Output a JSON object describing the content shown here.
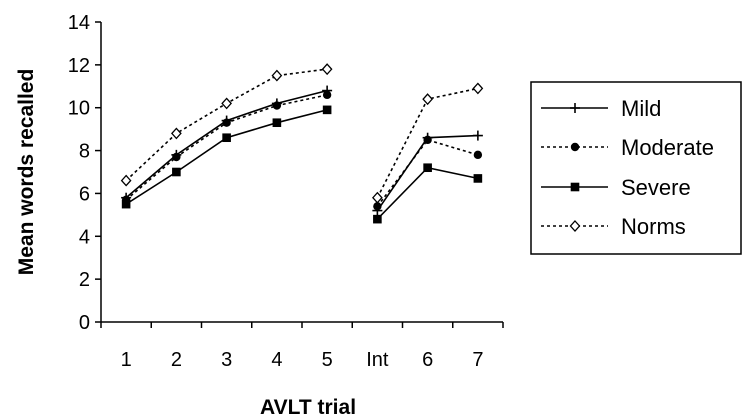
{
  "chart_data": {
    "type": "line",
    "title": "",
    "xlabel": "AVLT trial",
    "ylabel": "Mean words recalled",
    "categories": [
      "1",
      "2",
      "3",
      "4",
      "5",
      "Int",
      "6",
      "7"
    ],
    "segments": [
      [
        0,
        4
      ],
      [
        5,
        7
      ]
    ],
    "ylim": [
      0,
      14
    ],
    "yticks": [
      0,
      2,
      4,
      6,
      8,
      10,
      12,
      14
    ],
    "grid": false,
    "legend_position": "right",
    "series": [
      {
        "name": "Mild",
        "line": "solid",
        "marker": "plus",
        "values": [
          5.8,
          7.8,
          9.4,
          10.2,
          10.8,
          5.2,
          8.6,
          8.7
        ]
      },
      {
        "name": "Moderate",
        "line": "dotted",
        "marker": "circle",
        "values": [
          5.7,
          7.7,
          9.3,
          10.1,
          10.6,
          5.4,
          8.5,
          7.8
        ]
      },
      {
        "name": "Severe",
        "line": "solid",
        "marker": "square",
        "values": [
          5.5,
          7.0,
          8.6,
          9.3,
          9.9,
          4.8,
          7.2,
          6.7
        ]
      },
      {
        "name": "Norms",
        "line": "dotted",
        "marker": "diamond",
        "values": [
          6.6,
          8.8,
          10.2,
          11.5,
          11.8,
          5.8,
          10.4,
          10.9
        ]
      }
    ]
  }
}
